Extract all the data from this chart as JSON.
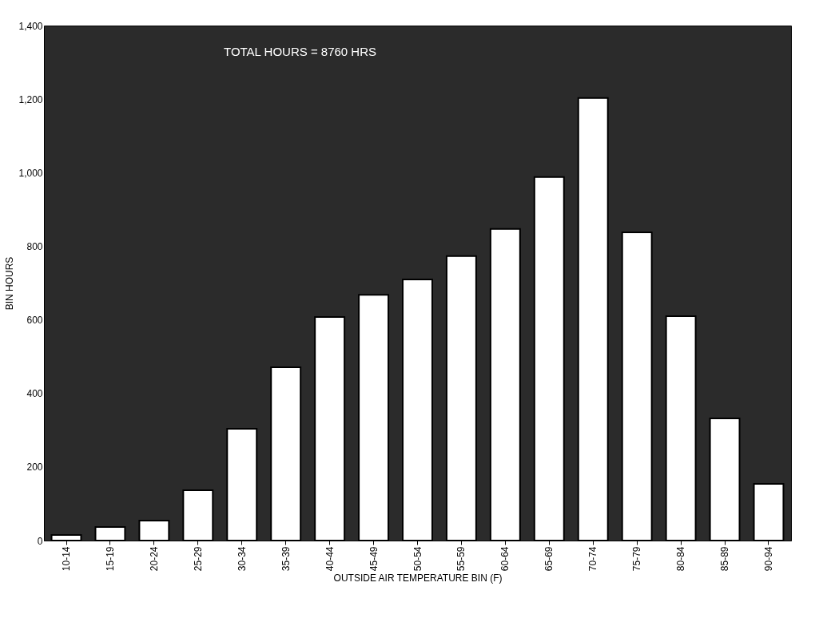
{
  "chart_data": {
    "type": "bar",
    "annotations": [
      "TOTAL HOURS = 8760 HRS"
    ],
    "xlabel": "OUTSIDE AIR TEMPERATURE BIN (F)",
    "ylabel": "BIN HOURS",
    "categories": [
      "10-14",
      "15-19",
      "20-24",
      "25-29",
      "30-34",
      "35-39",
      "40-44",
      "45-49",
      "50-54",
      "55-59",
      "60-64",
      "65-69",
      "70-74",
      "75-79",
      "80-84",
      "85-89",
      "90-94"
    ],
    "values": [
      15,
      37,
      54,
      137,
      304,
      471,
      608,
      668,
      710,
      773,
      847,
      988,
      1203,
      838,
      610,
      332,
      154
    ],
    "color": "#ffffff",
    "ylim": [
      0,
      1400
    ],
    "yticks": [
      0,
      200,
      400,
      600,
      800,
      {
        "value": 1000,
        "label": "1,000"
      },
      {
        "value": 1200,
        "label": "1,200"
      },
      {
        "value": 1400,
        "label": "1,400"
      }
    ],
    "grid": false
  }
}
